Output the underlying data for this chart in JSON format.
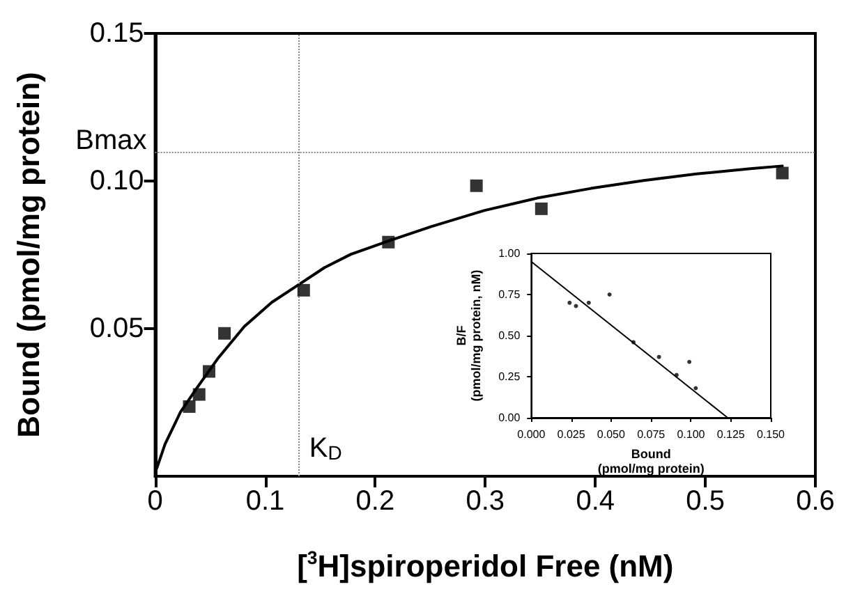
{
  "chart_data": [
    {
      "type": "scatter",
      "xlabel": "[$^{3}$H]spiroperidol Free (nM)",
      "ylabel": "Bound (pmol/mg protein)",
      "xlim": [
        0,
        0.6
      ],
      "ylim": [
        0,
        0.15
      ],
      "xticks": [
        0,
        0.1,
        0.2,
        0.3,
        0.4,
        0.5,
        0.6
      ],
      "yticks": [
        0.05,
        {
          "value": 0.1,
          "label": "0.10"
        },
        0.15
      ],
      "series": [
        {
          "color": "#000000",
          "marker": "square",
          "x": [
            0.031,
            0.04,
            0.049,
            0.063,
            0.135,
            0.212,
            0.292,
            0.351,
            0.57
          ],
          "values": [
            0.0236,
            0.0277,
            0.0355,
            0.0484,
            0.063,
            0.0793,
            0.0984,
            0.0906,
            0.1027
          ]
        },
        {
          "type": "line",
          "color": "#000000",
          "marker": "none",
          "line_style": "solid",
          "x": [
            0.0015,
            0.009,
            0.023,
            0.038,
            0.057,
            0.081,
            0.106,
            0.128,
            0.154,
            0.178,
            0.212,
            0.251,
            0.299,
            0.347,
            0.396,
            0.444,
            0.492,
            0.541,
            0.57
          ],
          "values": [
            0.0027,
            0.0109,
            0.0217,
            0.0299,
            0.0399,
            0.0507,
            0.0589,
            0.0643,
            0.0707,
            0.0752,
            0.0797,
            0.0846,
            0.09,
            0.0942,
            0.0975,
            0.1002,
            0.1024,
            0.1042,
            0.1051
          ]
        }
      ],
      "ref_lines": [
        {
          "axis": "y",
          "value": 0.11,
          "label": "Bmax",
          "color": "#888888",
          "line_style": "dotted"
        },
        {
          "axis": "x",
          "value": 0.13,
          "label": "K$_{D}$",
          "color": "#888888",
          "line_style": "dotted"
        }
      ]
    },
    {
      "type": "scatter",
      "xlabel": "Bound\n(pmol/mg protein)",
      "ylabel": "B/F\n(pmol/mg protein, nM)",
      "xlim": [
        0,
        0.15
      ],
      "ylim": [
        0,
        1
      ],
      "xticks": [
        {
          "value": 0,
          "label": "0.000"
        },
        0.025,
        {
          "value": 0.05,
          "label": "0.050"
        },
        0.075,
        {
          "value": 0.1,
          "label": "0.100"
        },
        0.125,
        {
          "value": 0.15,
          "label": "0.150"
        }
      ],
      "yticks": [
        {
          "value": 0,
          "label": "0.00"
        },
        0.25,
        {
          "value": 0.5,
          "label": "0.50"
        },
        0.75,
        {
          "value": 1,
          "label": "1.00"
        }
      ],
      "series": [
        {
          "color": "#000000",
          "marker": "circle",
          "x": [
            0.024,
            0.028,
            0.036,
            0.049,
            0.064,
            0.08,
            0.091,
            0.099,
            0.103
          ],
          "values": [
            0.7,
            0.68,
            0.7,
            0.75,
            0.46,
            0.37,
            0.26,
            0.34,
            0.18
          ]
        },
        {
          "type": "line",
          "color": "#000000",
          "marker": "none",
          "line_style": "solid",
          "x": [
            0,
            0.123
          ],
          "values": [
            0.95,
            0
          ]
        }
      ]
    }
  ]
}
